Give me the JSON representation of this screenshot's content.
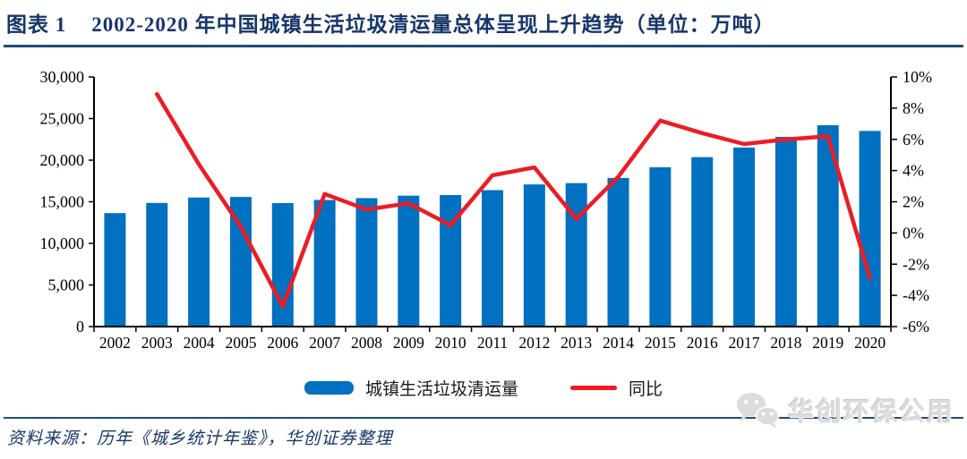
{
  "title": {
    "label": "图表 1",
    "text": "2002-2020 年中国城镇生活垃圾清运量总体呈现上升趋势（单位：万吨）"
  },
  "chart_data": {
    "type": "bar",
    "categories": [
      "2002",
      "2003",
      "2004",
      "2005",
      "2006",
      "2007",
      "2008",
      "2009",
      "2010",
      "2011",
      "2012",
      "2013",
      "2014",
      "2015",
      "2016",
      "2017",
      "2018",
      "2019",
      "2020"
    ],
    "series": [
      {
        "name": "城镇生活垃圾清运量",
        "type": "bar",
        "axis": "left",
        "values": [
          13638,
          14857,
          15509,
          15577,
          14841,
          15215,
          15438,
          15734,
          15805,
          16395,
          17081,
          17239,
          17860,
          19142,
          20362,
          21521,
          22802,
          24206,
          23512
        ]
      },
      {
        "name": "同比",
        "type": "line",
        "axis": "right",
        "values": [
          null,
          8.9,
          4.4,
          0.4,
          -4.7,
          2.5,
          1.5,
          1.9,
          0.5,
          3.7,
          4.2,
          0.9,
          3.6,
          7.2,
          6.4,
          5.7,
          6.0,
          6.2,
          -2.9
        ]
      }
    ],
    "left_axis": {
      "min": 0,
      "max": 30000,
      "step": 5000,
      "tick_labels": [
        "30,000",
        "25,000",
        "20,000",
        "15,000",
        "10,000",
        "5,000",
        "0"
      ]
    },
    "right_axis": {
      "min": -6,
      "max": 10,
      "step": 2,
      "tick_labels": [
        "10%",
        "8%",
        "6%",
        "4%",
        "2%",
        "0%",
        "-2%",
        "-4%",
        "-6%"
      ]
    },
    "grid": false,
    "legend_position": "bottom",
    "ylabel": "",
    "xlabel": ""
  },
  "legend": {
    "bar_label": "城镇生活垃圾清运量",
    "line_label": "同比"
  },
  "source": "资料来源：历年《城乡统计年鉴》，华创证券整理",
  "watermark": {
    "icon": "wechat-icon",
    "text": "华创环保公用"
  },
  "colors": {
    "bar": "#0070C0",
    "line": "#ED1C24",
    "title_navy": "#17366A",
    "rule_navy": "#1F4E79",
    "axis_black": "#000000",
    "watermark_gray": "#DCDCDC"
  }
}
